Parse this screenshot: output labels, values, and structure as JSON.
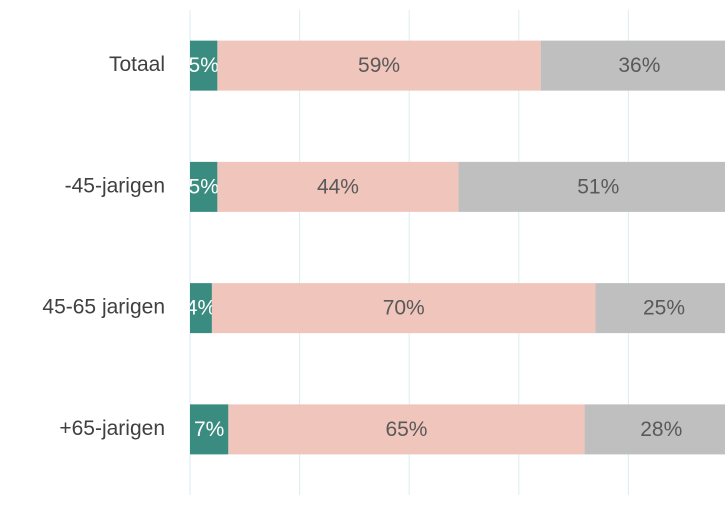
{
  "chart_data": {
    "type": "stacked_barh",
    "categories": [
      "Totaal",
      "-45-jarigen",
      "45-65 jarigen",
      "+65-jarigen"
    ],
    "series": [
      {
        "color": "#3a8c80",
        "values": [
          5,
          5,
          4,
          7
        ],
        "value_labels": [
          "5%",
          "5%",
          "4%",
          "7%"
        ]
      },
      {
        "color": "#f0c5bc",
        "values": [
          59,
          44,
          70,
          65
        ],
        "value_labels": [
          "59%",
          "44%",
          "70%",
          "65%"
        ]
      },
      {
        "color": "#bfbfbf",
        "values": [
          36,
          51,
          25,
          28
        ],
        "value_labels": [
          "36%",
          "51%",
          "25%",
          "28%"
        ]
      }
    ],
    "xlim": [
      0,
      100
    ],
    "xticks": [
      0,
      20,
      40,
      60,
      80,
      100
    ],
    "grid": true
  }
}
